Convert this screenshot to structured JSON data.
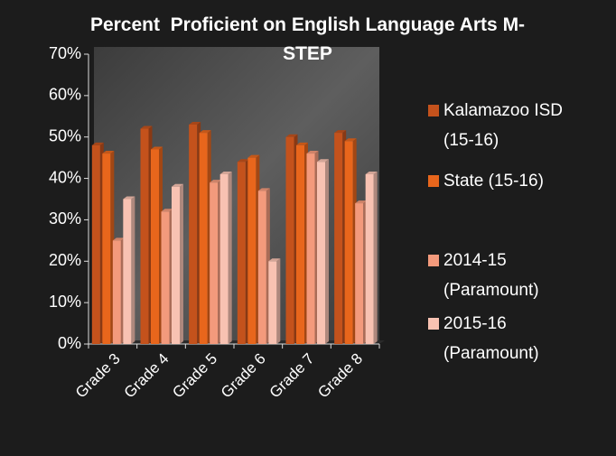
{
  "chart_data": {
    "type": "bar3d",
    "title": "Percent  Proficient on English Language Arts M-STEP",
    "categories": [
      "Grade 3",
      "Grade 4",
      "Grade 5",
      "Grade 6",
      "Grade 7",
      "Grade 8"
    ],
    "series": [
      {
        "name": "Kalamazoo ISD (15-16)",
        "color": "#c4521c",
        "values": [
          48,
          52,
          53,
          44,
          50,
          51
        ]
      },
      {
        "name": "State (15-16)",
        "color": "#e8661c",
        "values": [
          46,
          47,
          51,
          45,
          48,
          49
        ]
      },
      {
        "name": "2014-15 (Paramount)",
        "color": "#f39a7c",
        "values": [
          25,
          32,
          39,
          37,
          46,
          34
        ]
      },
      {
        "name": "2015-16 (Paramount)",
        "color": "#f8c2b2",
        "values": [
          35,
          38,
          41,
          20,
          44,
          41
        ]
      }
    ],
    "ylim": [
      0,
      70
    ],
    "yticks": [
      {
        "value": 0,
        "label": "0%"
      },
      {
        "value": 10,
        "label": "10%"
      },
      {
        "value": 20,
        "label": "20%"
      },
      {
        "value": 30,
        "label": "30%"
      },
      {
        "value": 40,
        "label": "40%"
      },
      {
        "value": 50,
        "label": "50%"
      },
      {
        "value": 60,
        "label": "60%"
      },
      {
        "value": 70,
        "label": "70%"
      }
    ],
    "grid": false,
    "legend": "right"
  }
}
